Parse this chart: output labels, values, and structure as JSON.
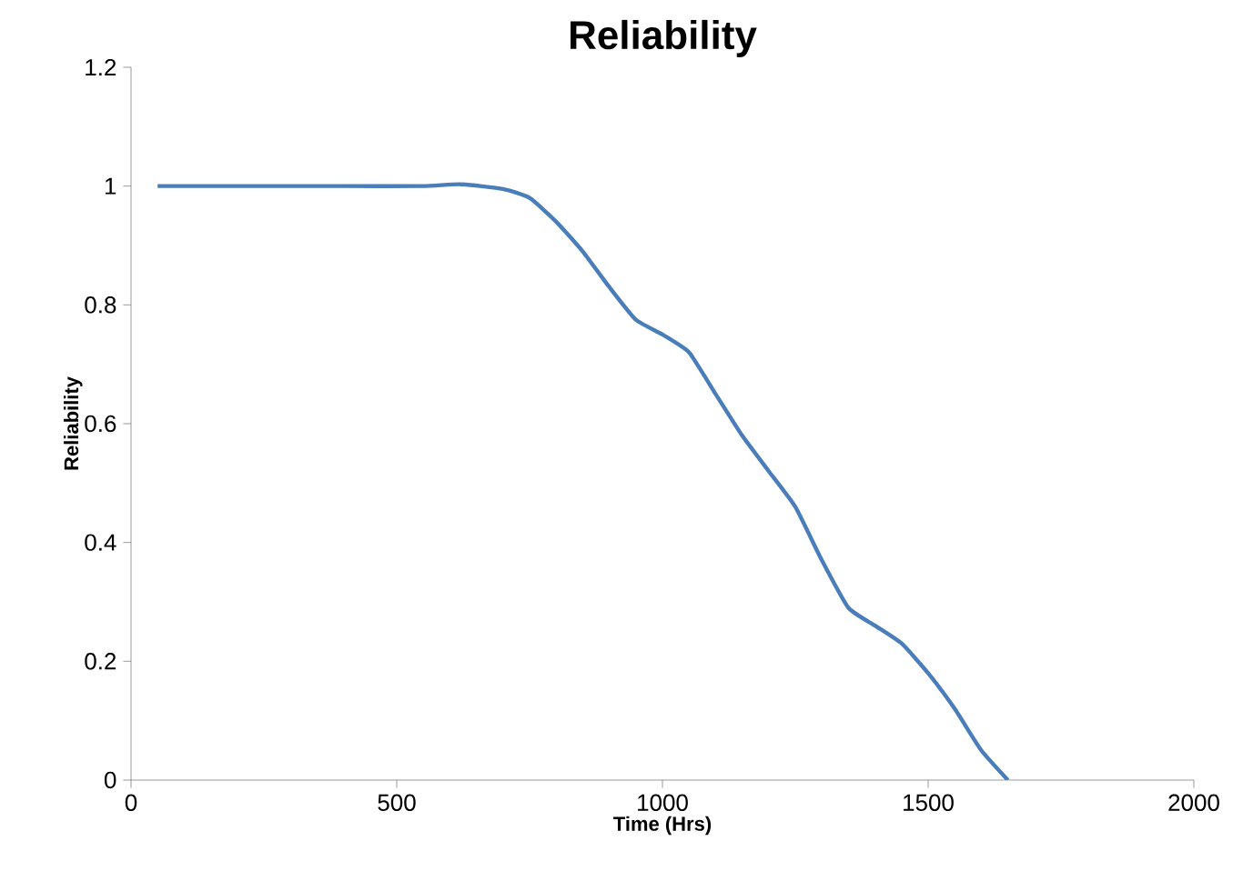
{
  "chart_data": {
    "type": "line",
    "title": "Reliability",
    "xlabel": "Time (Hrs)",
    "ylabel": "Reliability",
    "x": [
      50,
      200,
      400,
      550,
      620,
      700,
      750,
      800,
      850,
      900,
      950,
      1000,
      1050,
      1100,
      1150,
      1200,
      1250,
      1300,
      1350,
      1400,
      1450,
      1500,
      1550,
      1600,
      1650
    ],
    "series": [
      {
        "color": "#4a7ebb",
        "values": [
          1,
          1,
          1,
          1,
          1.003,
          0.995,
          0.98,
          0.94,
          0.89,
          0.83,
          0.775,
          0.75,
          0.72,
          0.65,
          0.58,
          0.52,
          0.46,
          0.37,
          0.29,
          0.26,
          0.23,
          0.18,
          0.12,
          0.05,
          0
        ]
      }
    ],
    "xlim": [
      0,
      2000
    ],
    "ylim": [
      0,
      1.2
    ],
    "xticks": [
      0,
      500,
      1000,
      1500,
      2000
    ],
    "yticks": [
      0,
      0.2,
      0.4,
      0.6,
      0.8,
      1,
      1.2
    ],
    "line_style": "solid"
  }
}
